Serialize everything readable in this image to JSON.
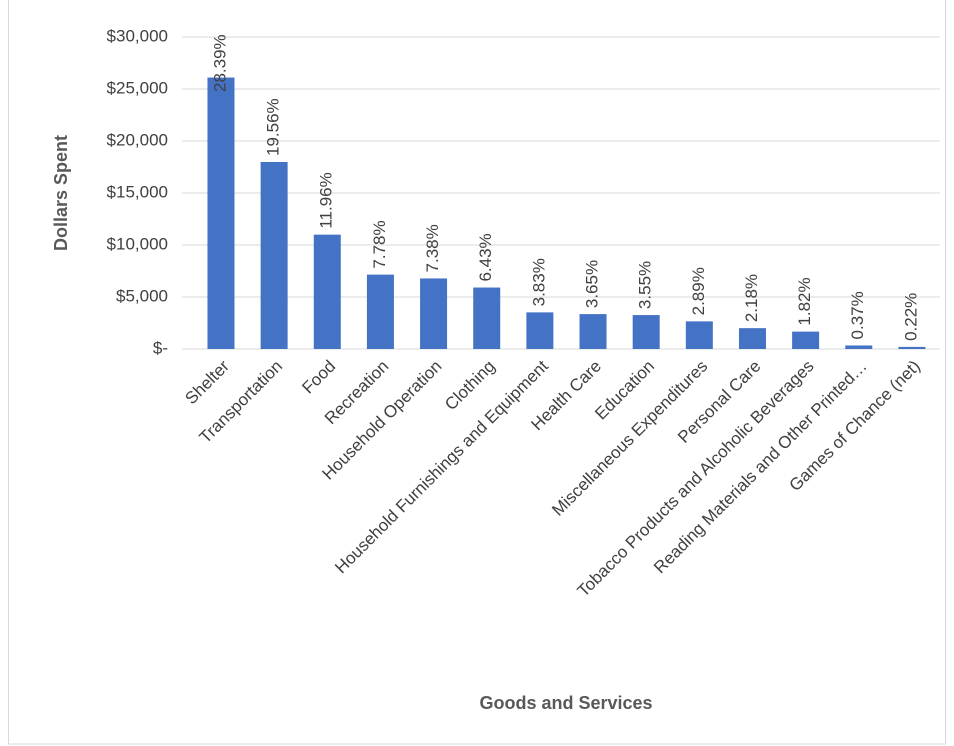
{
  "chart_data": {
    "type": "bar",
    "x_label": "Goods and Services",
    "y_label": "Dollars Spent",
    "categories": [
      "Shelter",
      "Transportation",
      "Food",
      "Recreation",
      "Household Operation",
      "Clothing",
      "Household Furnishings and Equipment",
      "Health Care",
      "Education",
      "Miscellaneous Expenditures",
      "Personal Care",
      "Tobacco Products and Alcoholic Beverages",
      "Reading Materials and Other Printed…",
      "Games of Chance (net)"
    ],
    "values": [
      26100,
      17980,
      10995,
      7152,
      6784,
      5911,
      3521,
      3355,
      3263,
      2657,
      2004,
      1673,
      340,
      202
    ],
    "data_labels": [
      "28.39%",
      "19.56%",
      "11.96%",
      "7.78%",
      "7.38%",
      "6.43%",
      "3.83%",
      "3.65%",
      "3.55%",
      "2.89%",
      "2.18%",
      "1.82%",
      "0.37%",
      "0.22%"
    ],
    "color": "#4472c4",
    "ylim": [
      0,
      30000
    ],
    "yticks": [
      {
        "value": 0,
        "label": "$-"
      },
      {
        "value": 5000,
        "label": "$5,000"
      },
      {
        "value": 10000,
        "label": "$10,000"
      },
      {
        "value": 15000,
        "label": "$15,000"
      },
      {
        "value": 20000,
        "label": "$20,000"
      },
      {
        "value": 25000,
        "label": "$25,000"
      },
      {
        "value": 30000,
        "label": "$30,000"
      }
    ],
    "grid": true
  }
}
